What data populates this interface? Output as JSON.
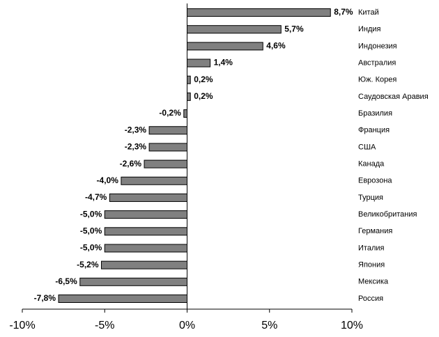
{
  "chart_data": {
    "type": "barh",
    "categories": [
      "Китай",
      "Индия",
      "Индонезия",
      "Австралия",
      "Юж. Корея",
      "Саудовская Аравия",
      "Бразилия",
      "Франция",
      "США",
      "Канада",
      "Еврозона",
      "Турция",
      "Великобритания",
      "Германия",
      "Италия",
      "Япония",
      "Мексика",
      "Россия"
    ],
    "values": [
      8.7,
      5.7,
      4.6,
      1.4,
      0.2,
      0.2,
      -0.2,
      -2.3,
      -2.3,
      -2.6,
      -4.0,
      -4.7,
      -5.0,
      -5.0,
      -5.0,
      -5.2,
      -6.5,
      -7.8
    ],
    "value_labels": [
      "8,7%",
      "5,7%",
      "4,6%",
      "1,4%",
      "0,2%",
      "0,2%",
      "-0,2%",
      "-2,3%",
      "-2,3%",
      "-2,6%",
      "-4,0%",
      "-4,7%",
      "-5,0%",
      "-5,0%",
      "-5,0%",
      "-5,2%",
      "-6,5%",
      "-7,8%"
    ],
    "color": "#808080",
    "xlim": [
      -10,
      10
    ],
    "xticks": [
      {
        "value": -10,
        "label": "-10%"
      },
      {
        "value": -5,
        "label": "-5%"
      },
      {
        "value": 0,
        "label": "0%"
      },
      {
        "value": 5,
        "label": "5%"
      },
      {
        "value": 10,
        "label": "10%"
      }
    ]
  }
}
